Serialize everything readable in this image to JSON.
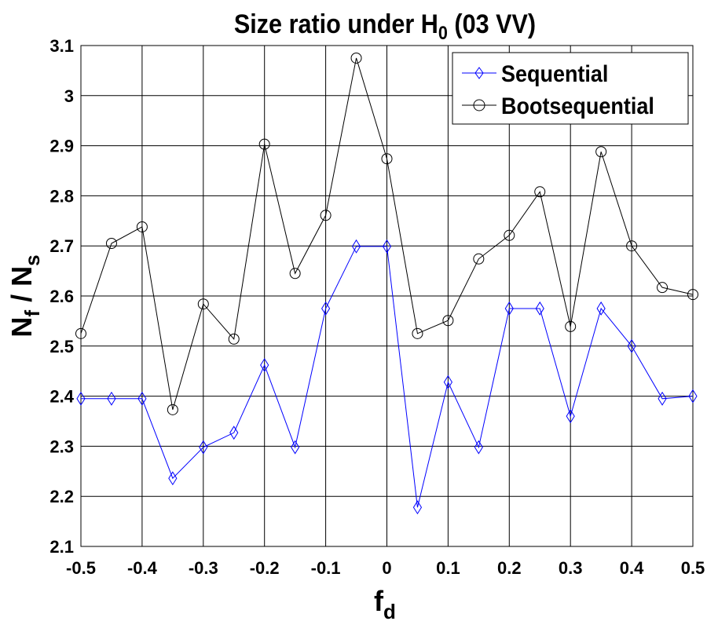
{
  "chart_data": {
    "type": "line",
    "title": "Size ratio under H",
    "title_sub": "0",
    "title_suffix": " (03 VV)",
    "xlabel": "f",
    "xlabel_sub": "d",
    "ylabel_parts": [
      "N",
      "f",
      " / N",
      "s"
    ],
    "xlim": [
      -0.5,
      0.5
    ],
    "ylim": [
      2.1,
      3.1
    ],
    "xticks": [
      "-0.5",
      "-0.4",
      "-0.3",
      "-0.2",
      "-0.1",
      "0",
      "0.1",
      "0.2",
      "0.3",
      "0.4",
      "0.5"
    ],
    "xtick_values": [
      -0.5,
      -0.4,
      -0.3,
      -0.2,
      -0.1,
      0,
      0.1,
      0.2,
      0.3,
      0.4,
      0.5
    ],
    "yticks": [
      "2.1",
      "2.2",
      "2.3",
      "2.4",
      "2.5",
      "2.6",
      "2.7",
      "2.8",
      "2.9",
      "3",
      "3.1"
    ],
    "ytick_values": [
      2.1,
      2.2,
      2.3,
      2.4,
      2.5,
      2.6,
      2.7,
      2.8,
      2.9,
      3.0,
      3.1
    ],
    "grid": true,
    "legend_position": "top-right",
    "x": [
      -0.5,
      -0.45,
      -0.4,
      -0.35,
      -0.3,
      -0.25,
      -0.2,
      -0.15,
      -0.1,
      -0.05,
      0,
      0.05,
      0.1,
      0.15,
      0.2,
      0.25,
      0.3,
      0.35,
      0.4,
      0.45,
      0.5
    ],
    "series": [
      {
        "name": "Sequential",
        "color": "#0000ff",
        "marker": "diamond",
        "values": [
          2.395,
          2.395,
          2.395,
          2.236,
          2.298,
          2.327,
          2.462,
          2.298,
          2.575,
          2.699,
          2.699,
          2.178,
          2.428,
          2.298,
          2.575,
          2.575,
          2.36,
          2.575,
          2.5,
          2.395,
          2.4
        ]
      },
      {
        "name": "Bootsequential",
        "color": "#000000",
        "marker": "circle",
        "values": [
          2.525,
          2.705,
          2.738,
          2.373,
          2.584,
          2.514,
          2.903,
          2.645,
          2.761,
          3.075,
          2.874,
          2.525,
          2.551,
          2.674,
          2.721,
          2.808,
          2.539,
          2.888,
          2.7,
          2.617,
          2.603
        ]
      }
    ]
  }
}
